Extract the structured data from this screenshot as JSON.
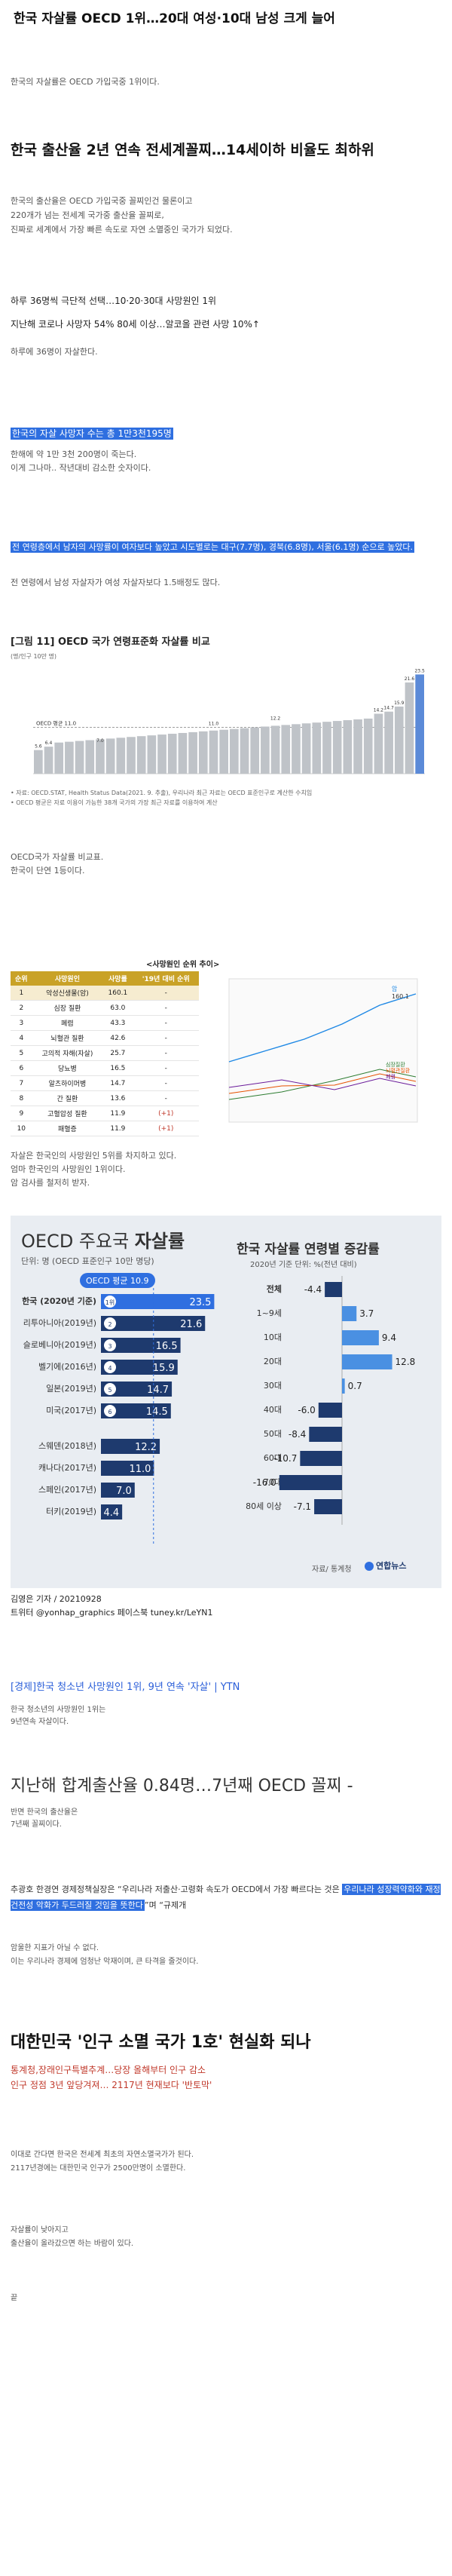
{
  "post": {
    "title": "한국 자살률 OECD 1위…20대 여성·10대 남성 크게 늘어",
    "line1": "한국의 자살률은 OECD 가입국중 1위이다.",
    "head2": "한국 출산율 2년 연속 전세계꼴찌…14세이하 비율도 최하위",
    "para2a": "한국의 출산율은 OECD 가입국중 꼴찌인건 물론이고",
    "para2b": "220개가 넘는 전세계 국가중 출산율 꼴찌로,",
    "para2c": "진짜로 세계에서 가장 빠른 속도로 자연 소멸중인 국가가 되었다.",
    "quote1": "하루 36명씩 극단적 선택…10·20·30대 사망원인 1위",
    "quote2": "지난해 코로나 사망자 54% 80세 이상…알코올 관련 사망 10%↑",
    "line3": "하루에 36명이 자살한다.",
    "hl1": "한국의 자살 사망자 수는 총 1만3천195명",
    "line4a": "한해에 약 1만 3천 200명이 죽는다.",
    "line4b": "이게 그나마.. 작년대비 감소한 숫자이다.",
    "hl2": "전 연령층에서 남자의 사망률이 여자보다 높았고 시도별로는 대구(7.7명), 경북(6.8명), 서울(6.1명) 순으로 높았다.",
    "line5": "전 연령에서 남성 자살자가 여성 자살자보다 1.5배정도 많다.",
    "line6a": "OECD국가 자살률 비교표.",
    "line6b": "한국이 단연 1등이다.",
    "line7a": "자살은 한국인의 사망원인 5위를 차지하고 있다.",
    "line7b": "엄마 한국인의 사망원인 1위이다.",
    "line7c": "암 검사를 철저히 받자.",
    "credit1": "김영은 기자 / 20210928",
    "credit2": "트위터 @yonhap_graphics 페이스북 tuney.kr/LeYN1",
    "news1": "[경제]한국 청소년 사망원인 1위, 9년 연속 '자살' | YTN",
    "line8a": "한국 청소년의 사망원인 1위는",
    "line8b": "9년연속 자살이다.",
    "head3": "지난해 합계출산율 0.84명…7년째 OECD 꼴찌 -",
    "line9a": "반면 한국의 출산율은",
    "line9b": "7년째 꼴찌이다.",
    "line10a": "추광호 한경연 경제정책실장은 “우리나라 저출산·고령화 속도가 OECD에서 가장 빠르다는 것은",
    "line10hl": "우리나라 성장력약화와 재정건전성 악화가 두드러질 것임을 뜻한다",
    "line10b": "”며 “규제개",
    "line11a": "암울한 지표가 아닐 수 없다.",
    "line11b": "이는 우리나라 경제에 엄청난 악재이며, 큰 타격을 줄것이다.",
    "head4": "대한민국 '인구 소멸 국가 1호' 현실화 되나",
    "sub4a": "통계청,장래인구특별추계…당장 올해부터 인구 감소",
    "sub4b": "인구 정점 3년 앞당겨져… 2117년 현재보다 '반토막'",
    "line12a": "이대로 간다면 한국은 전세계 최초의 자연소멸국가가 된다.",
    "line12b": "2117년경에는 대한민국 인구가 2500만명이 소멸한다.",
    "line13a": "자살률이 낮아지고",
    "line13b": "출산율이 올라갔으면 하는 바람이 있다.",
    "end": "끝"
  },
  "fig11": {
    "caption": "[그림 11] OECD 국가 연령표준화 자살률 비교",
    "ylabel": "(명/인구 10만 명)",
    "oecd_label": "OECD 평균 11.0",
    "source1": "• 자료: OECD.STAT, Health Status Data(2021. 9. 추출), 우리나라 최근 자료는 OECD 표준인구로 계산한 수치임",
    "source2": "• OECD 평균은 자료 이용이 가능한 38개 국가의 가장 최근 자료를 이용하여 계산"
  },
  "chart_data": [
    {
      "type": "bar",
      "title": "[그림 11] OECD 국가 연령표준화 자살률 비교",
      "ylabel": "(명/인구 10만 명)",
      "values_labeled": [
        {
          "label": "first",
          "value": 5.6
        },
        {
          "label": "second",
          "value": 6.4
        },
        {
          "label": "mid1",
          "value": 7.0
        },
        {
          "label": "mid2",
          "value": 11.0
        },
        {
          "label": "mid3",
          "value": 12.2
        },
        {
          "label": "r1",
          "value": 14.2
        },
        {
          "label": "r2",
          "value": 14.7
        },
        {
          "label": "r3",
          "value": 15.9
        },
        {
          "label": "r4",
          "value": 21.6
        },
        {
          "label": "Korea",
          "value": 23.5
        }
      ],
      "ylim": [
        0,
        25
      ]
    },
    {
      "type": "bar",
      "title": "OECD 주요국 자살률",
      "subtitle": "단위: 명 (OECD 표준인구 10만 명당)",
      "reference_label": "OECD 평균 10.9",
      "categories": [
        "한국 (2020년 기준)",
        "리투아니아(2019년)",
        "슬로베니아(2019년)",
        "벨기에(2016년)",
        "일본(2019년)",
        "미국(2017년)",
        "스웨덴(2018년)",
        "캐나다(2017년)",
        "스페인(2017년)",
        "터키(2019년)"
      ],
      "ranks": [
        "1위",
        "2",
        "3",
        "4",
        "5",
        "6",
        "",
        "",
        "",
        ""
      ],
      "values": [
        23.5,
        21.6,
        16.5,
        15.9,
        14.7,
        14.5,
        12.2,
        11.0,
        7.0,
        4.4
      ]
    },
    {
      "type": "bar",
      "title": "한국 자살률 연령별 증감률",
      "subtitle": "2020년 기준 단위: %(전년 대비)",
      "categories": [
        "전체",
        "1~9세",
        "10대",
        "20대",
        "30대",
        "40대",
        "50대",
        "60대",
        "70대",
        "80세 이상"
      ],
      "values": [
        -4.4,
        3.7,
        9.4,
        12.8,
        0.7,
        -6.0,
        -8.4,
        -10.7,
        -16.0,
        -7.1
      ],
      "source": "자료/ 통계청"
    }
  ],
  "rank_table": {
    "title": "<사망원인 순위 추이>",
    "headers": [
      "순위",
      "사망원인",
      "사망률",
      "'19년 대비 순위"
    ],
    "rows": [
      [
        "1",
        "악성신생물(암)",
        "160.1",
        "-"
      ],
      [
        "2",
        "심장 질환",
        "63.0",
        "-"
      ],
      [
        "3",
        "폐렴",
        "43.3",
        "-"
      ],
      [
        "4",
        "뇌혈관 질환",
        "42.6",
        "-"
      ],
      [
        "5",
        "고의적 자해(자살)",
        "25.7",
        "-"
      ],
      [
        "6",
        "당뇨병",
        "16.5",
        "-"
      ],
      [
        "7",
        "알츠하이머병",
        "14.7",
        "-"
      ],
      [
        "8",
        "간 질환",
        "13.6",
        "-"
      ],
      [
        "9",
        "고혈압성 질환",
        "11.9",
        "(+1)"
      ],
      [
        "10",
        "패혈증",
        "11.9",
        "(+1)"
      ]
    ],
    "line_labels": [
      "심장질환",
      "뇌혈관질환",
      "폐렴"
    ],
    "line_value": "160.1",
    "legend_cancer": "암"
  },
  "logo": "연합뉴스",
  "colors": {
    "accent": "#2f6fe0",
    "infographic_bg": "#e9edf2",
    "bar_blue": "#1e3a6e",
    "korea_bar": "#2f6fe0"
  }
}
